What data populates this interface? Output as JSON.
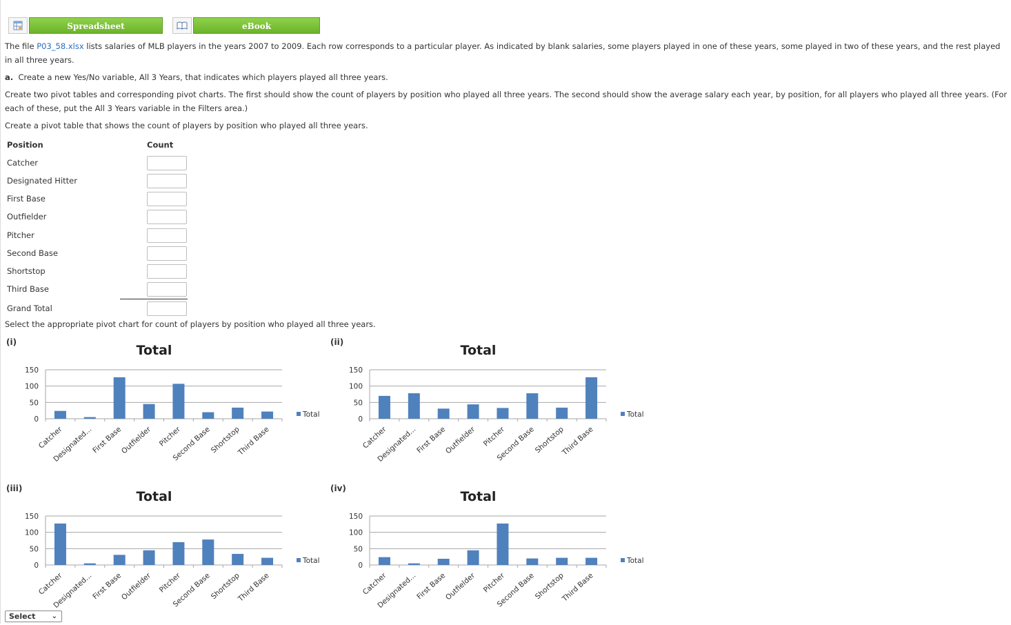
{
  "resources": {
    "spreadsheet_label": "Spreadsheet",
    "ebook_label": "eBook"
  },
  "intro": {
    "prefix": "The file ",
    "file_link": "P03_58.xlsx",
    "suffix": " lists salaries of MLB players in the years 2007 to 2009. Each row corresponds to a particular player. As indicated by blank salaries, some players played in one of these years, some played in two of these years, and the rest played in all three years."
  },
  "part_a": {
    "label": "a.",
    "text": "Create a new Yes/No variable, All 3 Years, that indicates which players played all three years."
  },
  "instructions": "Create two pivot tables and corresponding pivot charts. The first should show the count of players by position who played all three years. The second should show the average salary each year, by position, for all players who played all three years. (For each of these, put the All 3 Years variable in the Filters area.)",
  "pivot_prompt": "Create a pivot table that shows the count of players by position who played all three years.",
  "pivot_table": {
    "header_position": "Position",
    "header_count": "Count",
    "rows": [
      {
        "position": "Catcher",
        "count": ""
      },
      {
        "position": "Designated Hitter",
        "count": ""
      },
      {
        "position": "First Base",
        "count": ""
      },
      {
        "position": "Outfielder",
        "count": ""
      },
      {
        "position": "Pitcher",
        "count": ""
      },
      {
        "position": "Second Base",
        "count": ""
      },
      {
        "position": "Shortstop",
        "count": ""
      },
      {
        "position": "Third Base",
        "count": ""
      }
    ],
    "grand_total_label": "Grand Total",
    "grand_total_value": ""
  },
  "chart_prompt": "Select the appropriate pivot chart for count of players by position who played all three years.",
  "bar_color": "#4f81bd",
  "chart_data": [
    {
      "label": "(i)",
      "type": "bar",
      "title": "Total",
      "categories": [
        "Catcher",
        "Designated...",
        "First Base",
        "Outfielder",
        "Pitcher",
        "Second Base",
        "Shortstop",
        "Third Base"
      ],
      "series": [
        {
          "name": "Total",
          "values": [
            24,
            5,
            127,
            45,
            107,
            20,
            34,
            22
          ]
        }
      ],
      "ylim": [
        0,
        150
      ],
      "yticks": [
        0,
        50,
        100,
        150
      ],
      "grid": true,
      "legend": "right"
    },
    {
      "label": "(ii)",
      "type": "bar",
      "title": "Total",
      "categories": [
        "Catcher",
        "Designated...",
        "First Base",
        "Outfielder",
        "Pitcher",
        "Second Base",
        "Shortstop",
        "Third Base"
      ],
      "series": [
        {
          "name": "Total",
          "values": [
            70,
            78,
            31,
            44,
            33,
            78,
            34,
            127
          ]
        }
      ],
      "ylim": [
        0,
        150
      ],
      "yticks": [
        0,
        50,
        100,
        150
      ],
      "grid": true,
      "legend": "right"
    },
    {
      "label": "(iii)",
      "type": "bar",
      "title": "Total",
      "categories": [
        "Catcher",
        "Designated...",
        "First Base",
        "Outfielder",
        "Pitcher",
        "Second Base",
        "Shortstop",
        "Third Base"
      ],
      "series": [
        {
          "name": "Total",
          "values": [
            127,
            5,
            31,
            45,
            70,
            78,
            34,
            22
          ]
        }
      ],
      "ylim": [
        0,
        150
      ],
      "yticks": [
        0,
        50,
        100,
        150
      ],
      "grid": true,
      "legend": "right"
    },
    {
      "label": "(iv)",
      "type": "bar",
      "title": "Total",
      "categories": [
        "Catcher",
        "Designated...",
        "First Base",
        "Outfielder",
        "Pitcher",
        "Second Base",
        "Shortstop",
        "Third Base"
      ],
      "series": [
        {
          "name": "Total",
          "values": [
            24,
            5,
            19,
            45,
            127,
            20,
            22,
            22
          ]
        }
      ],
      "ylim": [
        0,
        150
      ],
      "yticks": [
        0,
        50,
        100,
        150
      ],
      "grid": true,
      "legend": "right"
    }
  ],
  "answer_select": {
    "selected": "Select"
  }
}
